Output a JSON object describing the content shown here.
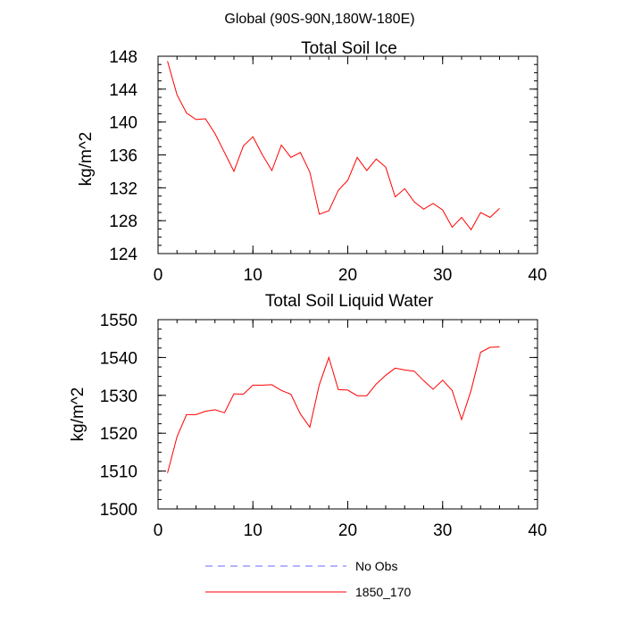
{
  "suptitle": "Global (90S-90N,180W-180E)",
  "chart_data": [
    {
      "type": "line",
      "title": "Total Soil Ice",
      "xlabel": "",
      "ylabel": "kg/m^2",
      "xlim": [
        0,
        40
      ],
      "ylim": [
        124,
        148
      ],
      "xticks": [
        0,
        10,
        20,
        30,
        40
      ],
      "yticks": [
        124,
        128,
        132,
        136,
        140,
        144,
        148
      ],
      "grid": false,
      "series": [
        {
          "name": "1850_170",
          "color": "#ff0000",
          "x": [
            1,
            2,
            3,
            4,
            5,
            6,
            7,
            8,
            9,
            10,
            11,
            12,
            13,
            14,
            15,
            16,
            17,
            18,
            19,
            20,
            21,
            22,
            23,
            24,
            25,
            26,
            27,
            28,
            29,
            30,
            31,
            32,
            33,
            34,
            35,
            36
          ],
          "y": [
            147.4,
            143.3,
            141.1,
            140.3,
            140.4,
            138.6,
            136.3,
            134.0,
            137.1,
            138.2,
            136.0,
            134.1,
            137.2,
            135.7,
            136.3,
            133.9,
            128.8,
            129.2,
            131.7,
            132.9,
            135.7,
            134.1,
            135.5,
            134.5,
            130.9,
            131.9,
            130.3,
            129.4,
            130.1,
            129.3,
            127.2,
            128.4,
            126.9,
            129.0,
            128.4,
            129.5
          ]
        }
      ]
    },
    {
      "type": "line",
      "title": "Total Soil Liquid Water",
      "xlabel": "",
      "ylabel": "kg/m^2",
      "xlim": [
        0,
        40
      ],
      "ylim": [
        1500,
        1550
      ],
      "xticks": [
        0,
        10,
        20,
        30,
        40
      ],
      "yticks": [
        1500,
        1510,
        1520,
        1530,
        1540,
        1550
      ],
      "grid": false,
      "series": [
        {
          "name": "1850_170",
          "color": "#ff0000",
          "x": [
            1,
            2,
            3,
            4,
            5,
            6,
            7,
            8,
            9,
            10,
            11,
            12,
            13,
            14,
            15,
            16,
            17,
            18,
            19,
            20,
            21,
            22,
            23,
            24,
            25,
            26,
            27,
            28,
            29,
            30,
            31,
            32,
            33,
            34,
            35,
            36
          ],
          "y": [
            1509.5,
            1519.1,
            1524.9,
            1524.9,
            1525.8,
            1526.2,
            1525.4,
            1530.4,
            1530.3,
            1532.7,
            1532.7,
            1532.8,
            1531.3,
            1530.3,
            1525.1,
            1521.6,
            1532.8,
            1540.0,
            1531.5,
            1531.4,
            1529.9,
            1529.9,
            1533.0,
            1535.3,
            1537.2,
            1536.7,
            1536.4,
            1533.9,
            1531.6,
            1534.0,
            1531.3,
            1523.6,
            1531.3,
            1541.4,
            1542.7,
            1542.8
          ]
        }
      ]
    }
  ],
  "legend": {
    "placement": "bottom",
    "entries": [
      {
        "label": "No Obs",
        "color": "#6a6aff",
        "style": "dashed"
      },
      {
        "label": "1850_170",
        "color": "#ff0000",
        "style": "solid"
      }
    ]
  }
}
